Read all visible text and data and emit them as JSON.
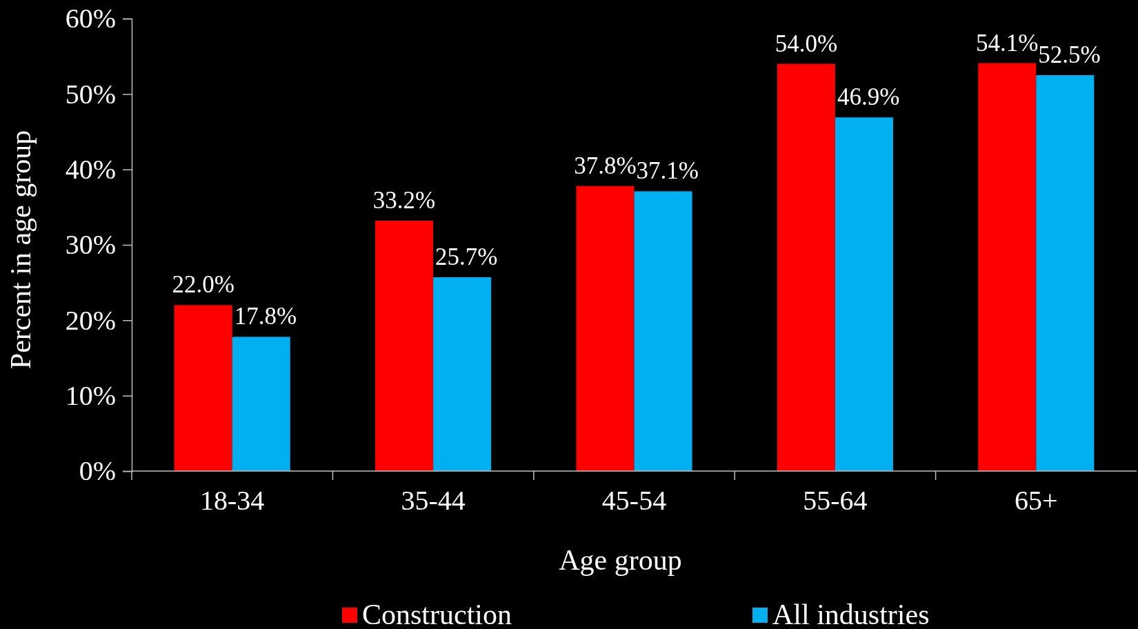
{
  "chart_data": {
    "type": "bar",
    "xlabel": "Age group",
    "ylabel": "Percent in age group",
    "categories": [
      "18-34",
      "35-44",
      "45-54",
      "55-64",
      "65+"
    ],
    "series": [
      {
        "name": "Construction",
        "color": "#ff0000",
        "values": [
          22.0,
          33.2,
          37.8,
          54.0,
          54.1
        ],
        "value_labels": [
          "22.0%",
          "33.2%",
          "37.8%",
          "54.0%",
          "54.1%"
        ]
      },
      {
        "name": "All industries",
        "color": "#00b0f0",
        "values": [
          17.8,
          25.7,
          37.1,
          46.9,
          52.5
        ],
        "value_labels": [
          "17.8%",
          "25.7%",
          "37.1%",
          "46.9%",
          "52.5%"
        ]
      }
    ],
    "ylim": [
      0,
      60
    ],
    "yticks": [
      {
        "value": 0,
        "label": "0%"
      },
      {
        "value": 10,
        "label": "10%"
      },
      {
        "value": 20,
        "label": "20%"
      },
      {
        "value": 30,
        "label": "30%"
      },
      {
        "value": 40,
        "label": "40%"
      },
      {
        "value": 50,
        "label": "50%"
      },
      {
        "value": 60,
        "label": "60%"
      }
    ],
    "grid": false,
    "legend": "bottom"
  }
}
